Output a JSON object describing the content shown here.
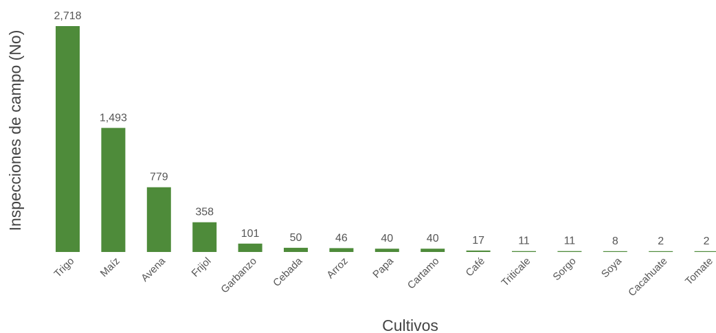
{
  "chart_data": {
    "type": "bar",
    "categories": [
      "Trigo",
      "Maíz",
      "Avena",
      "Frijol",
      "Garbanzo",
      "Cebada",
      "Arroz",
      "Papa",
      "Cartamo",
      "Café",
      "Triticale",
      "Sorgo",
      "Soya",
      "Cacahuate",
      "Tomate"
    ],
    "values": [
      2718,
      1493,
      779,
      358,
      101,
      50,
      46,
      40,
      40,
      17,
      11,
      11,
      8,
      2,
      2
    ],
    "value_labels": [
      "2,718",
      "1,493",
      "779",
      "358",
      "101",
      "50",
      "46",
      "40",
      "40",
      "17",
      "11",
      "11",
      "8",
      "2",
      "2"
    ],
    "xlabel": "Cultivos",
    "ylabel": "Inspecciones de campo (No)",
    "ylim": [
      0,
      2718
    ],
    "grid": false,
    "legend": "none",
    "bar_color": "#4e8b3a"
  }
}
